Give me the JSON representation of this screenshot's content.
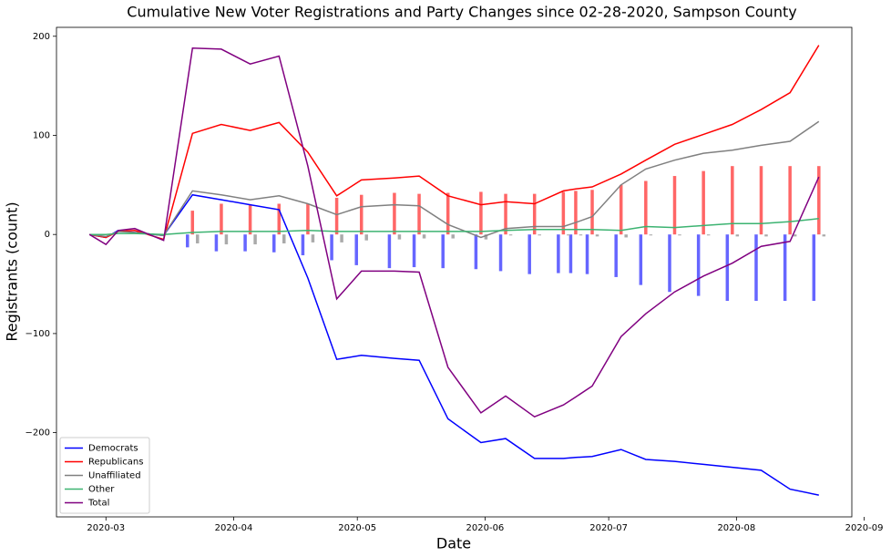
{
  "chart_data": {
    "type": "line",
    "title": "Cumulative New Voter Registrations and Party Changes since 02-28-2020, Sampson County",
    "x_label": "Date",
    "y_label": "Registrants (count)",
    "x": [
      "2020-02-26",
      "2020-03-01",
      "2020-03-04",
      "2020-03-08",
      "2020-03-15",
      "2020-03-22",
      "2020-03-29",
      "2020-04-05",
      "2020-04-12",
      "2020-04-19",
      "2020-04-26",
      "2020-05-02",
      "2020-05-10",
      "2020-05-16",
      "2020-05-23",
      "2020-05-31",
      "2020-06-06",
      "2020-06-13",
      "2020-06-20",
      "2020-06-23",
      "2020-06-27",
      "2020-07-04",
      "2020-07-10",
      "2020-07-17",
      "2020-07-24",
      "2020-07-31",
      "2020-08-07",
      "2020-08-14",
      "2020-08-21"
    ],
    "series": [
      {
        "name": "Democrats",
        "color": "#0000ff",
        "values": [
          0,
          -3,
          4,
          2,
          -1,
          40,
          35,
          30,
          25,
          -44,
          -126,
          -122,
          -125,
          -127,
          -186,
          -210,
          -206,
          -226,
          -226,
          -225,
          -224,
          -217,
          -227,
          -229,
          -232,
          -235,
          -238,
          -257,
          -263
        ]
      },
      {
        "name": "Republicans",
        "color": "#ff0000",
        "values": [
          0,
          -3,
          3,
          4,
          -5,
          102,
          111,
          105,
          113,
          83,
          39,
          55,
          57,
          59,
          39,
          30,
          33,
          31,
          44,
          46,
          48,
          61,
          75,
          91,
          101,
          111,
          126,
          143,
          191
        ]
      },
      {
        "name": "Unaffiliated",
        "color": "#808080",
        "values": [
          0,
          -2,
          3,
          2,
          -1,
          44,
          40,
          35,
          39,
          31,
          20,
          28,
          30,
          29,
          10,
          -3,
          6,
          8,
          8,
          12,
          18,
          50,
          66,
          75,
          82,
          85,
          90,
          94,
          114
        ]
      },
      {
        "name": "Other",
        "color": "#3cb371",
        "values": [
          0,
          0,
          1,
          1,
          0,
          2,
          3,
          3,
          3,
          4,
          3,
          3,
          3,
          3,
          3,
          3,
          4,
          5,
          5,
          5,
          5,
          4,
          8,
          7,
          9,
          11,
          11,
          13,
          16
        ]
      },
      {
        "name": "Total",
        "color": "#800080",
        "values": [
          0,
          -10,
          4,
          6,
          -6,
          188,
          187,
          172,
          180,
          69,
          -65,
          -37,
          -37,
          -38,
          -134,
          -180,
          -163,
          -184,
          -172,
          -164,
          -153,
          -103,
          -80,
          -58,
          -42,
          -29,
          -12,
          -7,
          58
        ]
      }
    ],
    "bar_series": [
      {
        "color": "#6666ff",
        "values": [
          null,
          null,
          null,
          null,
          null,
          -13,
          -17,
          -17,
          -18,
          -21,
          -26,
          -31,
          -34,
          -33,
          -34,
          -35,
          -37,
          -40,
          -39,
          -39,
          -40,
          -43,
          -51,
          -58,
          -62,
          -67,
          -67,
          -67,
          -67
        ]
      },
      {
        "color": "#ff6666",
        "values": [
          null,
          null,
          null,
          null,
          null,
          24,
          31,
          30,
          31,
          31,
          37,
          40,
          42,
          41,
          42,
          43,
          41,
          41,
          43,
          44,
          45,
          50,
          54,
          59,
          64,
          69,
          69,
          69,
          69
        ]
      },
      {
        "color": "#aaaaaa",
        "values": [
          null,
          null,
          null,
          null,
          null,
          -9,
          -10,
          -10,
          -9,
          -8,
          -8,
          -6,
          -5,
          -4,
          -4,
          -5,
          -1,
          -1,
          -1,
          -1,
          -2,
          -3,
          -1,
          -1,
          -1,
          -2,
          -2,
          -2,
          -2
        ]
      }
    ],
    "xlim": [
      "2020-02-18",
      "2020-08-29"
    ],
    "xticks": [
      {
        "value": "2020-03-01",
        "label": "2020-03"
      },
      {
        "value": "2020-04-01",
        "label": "2020-04"
      },
      {
        "value": "2020-05-01",
        "label": "2020-05"
      },
      {
        "value": "2020-06-01",
        "label": "2020-06"
      },
      {
        "value": "2020-07-01",
        "label": "2020-07"
      },
      {
        "value": "2020-08-01",
        "label": "2020-08"
      },
      {
        "value": "2020-09-01",
        "label": "2020-09"
      }
    ],
    "ylim": [
      -285,
      209
    ],
    "yticks": [
      {
        "value": -200,
        "label": "−200"
      },
      {
        "value": -100,
        "label": "−100"
      },
      0,
      100,
      200
    ],
    "legend": "lower left"
  }
}
